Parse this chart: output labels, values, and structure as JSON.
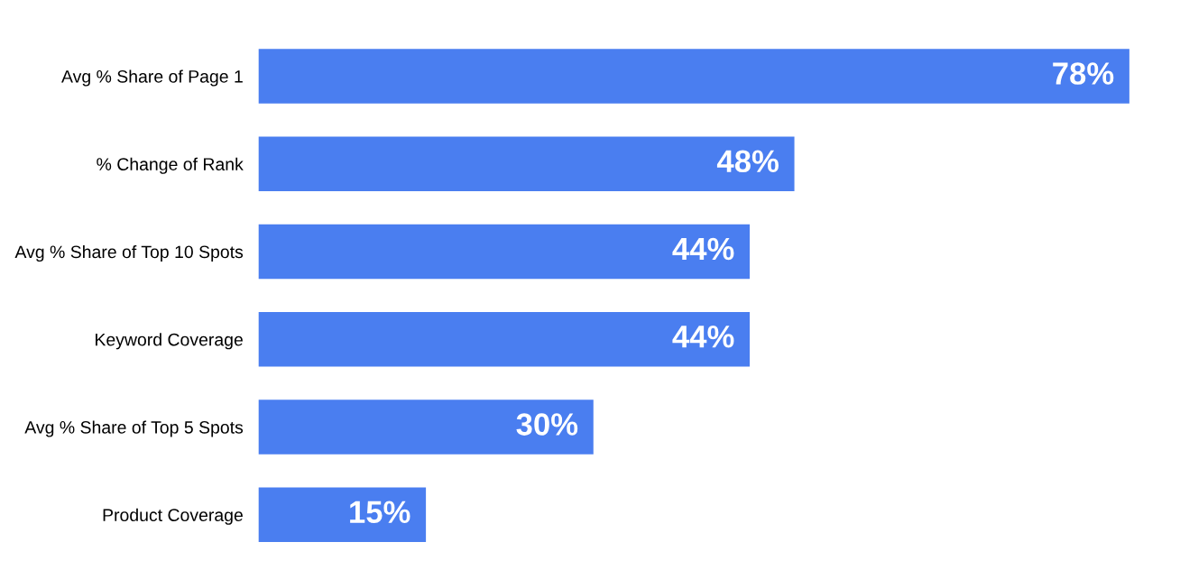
{
  "chart_data": {
    "type": "bar",
    "orientation": "horizontal",
    "categories": [
      "Avg % Share of Page 1",
      "% Change of Rank",
      "Avg % Share of Top 10 Spots",
      "Keyword Coverage",
      "Avg % Share of Top 5 Spots",
      "Product Coverage"
    ],
    "values": [
      78,
      48,
      44,
      44,
      30,
      15
    ],
    "value_labels": [
      "78%",
      "48%",
      "44%",
      "44%",
      "30%",
      "15%"
    ],
    "color": "#4a7ef0",
    "tick_labels": "y",
    "grid": false,
    "legend": false
  }
}
